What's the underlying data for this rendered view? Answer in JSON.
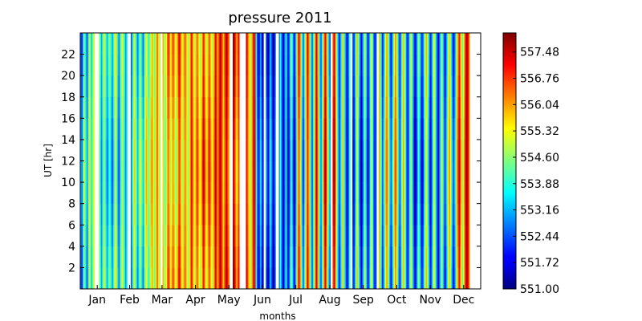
{
  "chart_data": {
    "type": "heatmap",
    "title": "pressure 2011",
    "xlabel": "months",
    "ylabel": "UT [hr]",
    "x_tick_labels": [
      "Jan",
      "Feb",
      "Mar",
      "Apr",
      "May",
      "Jun",
      "Jul",
      "Aug",
      "Sep",
      "Oct",
      "Nov",
      "Dec"
    ],
    "y_ticks": [
      2,
      4,
      6,
      8,
      10,
      12,
      14,
      16,
      18,
      20,
      22
    ],
    "y_range": [
      0,
      24
    ],
    "x_range_days": [
      0,
      365
    ],
    "colorbar": {
      "colormap": "jet",
      "min": 551.0,
      "max": 558.0,
      "tick_values": [
        551.0,
        551.72,
        552.44,
        553.16,
        553.88,
        554.6,
        555.32,
        556.04,
        556.76,
        557.48
      ],
      "tick_labels": [
        "551.00",
        "551.72",
        "552.44",
        "553.16",
        "553.88",
        "554.60",
        "555.32",
        "556.04",
        "556.76",
        "557.48"
      ]
    },
    "daily_pressure": [
      553.1,
      552.2,
      553.6,
      554.9,
      554.1,
      553.3,
      552.7,
      554.2,
      555.4,
      554.3,
      553.4,
      554.6,
      555.2,
      554.0,
      553.1,
      552.6,
      553.9,
      554.8,
      553.5,
      552.9,
      553.8,
      555.0,
      554.6,
      553.7,
      552.8,
      553.4,
      554.5,
      554.0,
      553.2,
      552.7,
      553.6,
      554.9,
      555.3,
      554.2,
      553.0,
      552.5,
      553.7,
      554.6,
      555.1,
      554.4,
      553.5,
      552.8,
      553.9,
      555.2,
      554.3,
      553.3,
      552.6,
      553.4,
      554.7,
      555.5,
      554.6,
      553.6,
      552.9,
      554.0,
      555.1,
      554.5,
      553.5,
      553.0,
      554.2,
      555.3,
      555.7,
      554.8,
      553.9,
      554.6,
      555.6,
      556.2,
      555.3,
      554.4,
      555.0,
      556.0,
      556.4,
      555.5,
      554.7,
      555.4,
      556.3,
      555.8,
      554.9,
      554.3,
      555.1,
      556.1,
      556.7,
      555.9,
      555.0,
      555.6,
      556.5,
      556.0,
      555.2,
      554.6,
      555.5,
      556.6,
      557.0,
      556.2,
      555.3,
      554.8,
      555.7,
      556.5,
      555.9,
      555.1,
      554.5,
      555.4,
      556.3,
      557.2,
      556.4,
      555.5,
      555.0,
      555.9,
      556.8,
      556.2,
      555.4,
      554.9,
      555.6,
      556.6,
      557.4,
      556.5,
      555.6,
      555.2,
      556.1,
      557.0,
      556.3,
      555.5,
      555.0,
      555.8,
      556.7,
      557.5,
      556.6,
      555.8,
      556.9,
      557.7,
      557.2,
      556.4,
      555.6,
      556.3,
      557.0,
      557.6,
      556.8,
      556.0,
      555.4,
      556.2,
      557.1,
      557.8,
      557.3,
      556.5,
      555.7,
      556.1,
      556.9,
      557.5,
      556.6,
      555.8,
      555.1,
      555.9,
      556.8,
      557.4,
      556.7,
      555.9,
      555.2,
      554.7,
      555.8,
      556.9,
      557.6,
      556.8,
      553.8,
      552.6,
      551.8,
      552.4,
      553.5,
      552.3,
      551.6,
      552.9,
      554.2,
      553.1,
      552.0,
      551.5,
      552.6,
      553.8,
      552.7,
      551.8,
      551.3,
      552.5,
      553.6,
      552.4,
      551.6,
      552.8,
      554.0,
      553.0,
      551.9,
      551.4,
      552.7,
      553.9,
      552.8,
      551.7,
      552.2,
      553.4,
      554.5,
      553.3,
      552.1,
      551.6,
      552.9,
      554.8,
      556.2,
      557.0,
      555.8,
      554.4,
      553.2,
      552.3,
      553.6,
      555.1,
      556.4,
      557.2,
      556.0,
      554.6,
      553.4,
      552.5,
      553.8,
      555.3,
      556.7,
      557.5,
      556.3,
      554.8,
      553.5,
      552.6,
      553.9,
      555.4,
      556.8,
      557.6,
      556.5,
      555.0,
      553.7,
      552.8,
      554.0,
      555.5,
      556.9,
      557.7,
      556.7,
      555.2,
      553.9,
      552.9,
      552.1,
      553.3,
      554.6,
      555.8,
      554.5,
      553.2,
      552.2,
      551.6,
      552.7,
      553.9,
      554.9,
      553.7,
      552.5,
      551.8,
      553.0,
      554.3,
      555.5,
      554.4,
      553.1,
      552.0,
      551.5,
      552.6,
      553.8,
      554.8,
      553.6,
      552.4,
      551.7,
      552.9,
      554.1,
      555.2,
      554.0,
      552.8,
      551.9,
      552.5,
      553.7,
      554.9,
      555.9,
      554.7,
      553.5,
      552.3,
      553.1,
      554.4,
      555.6,
      556.4,
      555.3,
      554.1,
      552.9,
      552.1,
      553.3,
      554.6,
      555.7,
      556.6,
      555.5,
      554.2,
      553.0,
      552.2,
      553.5,
      554.8,
      555.9,
      555.0,
      553.8,
      552.7,
      551.9,
      552.8,
      554.0,
      555.1,
      554.2,
      553.0,
      552.0,
      551.4,
      552.3,
      553.5,
      554.6,
      553.6,
      552.5,
      551.7,
      552.4,
      553.6,
      554.7,
      555.6,
      554.7,
      553.5,
      552.4,
      551.8,
      552.9,
      554.1,
      555.3,
      554.4,
      553.3,
      552.3,
      551.6,
      552.6,
      553.9,
      555.0,
      554.0,
      552.9,
      552.0,
      552.8,
      554.0,
      555.2,
      556.0,
      555.0,
      553.8,
      552.7,
      552.0,
      553.1,
      554.4,
      555.7,
      556.6,
      557.3,
      556.5,
      555.4,
      554.3,
      555.4,
      556.5,
      557.4,
      557.9,
      557.2,
      556.2
    ],
    "missing_day_ranges": [
      [
        13,
        16
      ],
      [
        43,
        45
      ],
      [
        73,
        74
      ],
      [
        136,
        138
      ],
      [
        145,
        150
      ],
      [
        167,
        168
      ],
      [
        178,
        180
      ],
      [
        228,
        229
      ],
      [
        246,
        247
      ],
      [
        270,
        271
      ]
    ]
  }
}
